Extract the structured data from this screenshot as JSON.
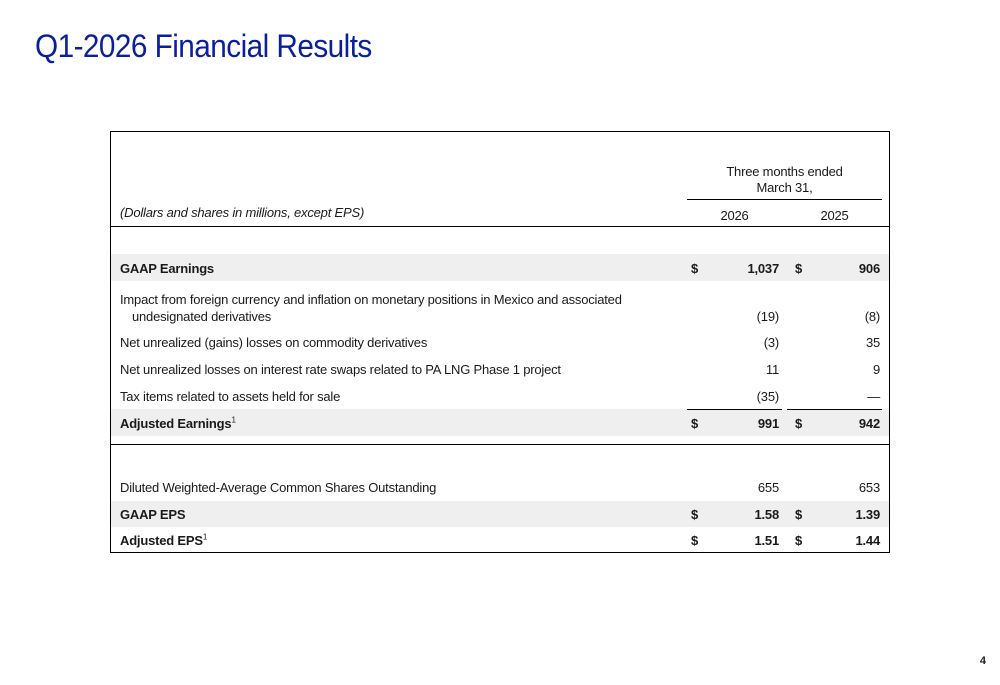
{
  "slide": {
    "title": "Q1-2026 Financial Results",
    "page_number": "4"
  },
  "table": {
    "note": "(Dollars and shares in millions, except EPS)",
    "period_header_line1": "Three months ended",
    "period_header_line2": "March 31,",
    "col_2026": "2026",
    "col_2025": "2025",
    "currency": "$",
    "footnote_marker": "1",
    "rows": [
      {
        "label": "GAAP Earnings",
        "v2026": "1,037",
        "v2025": "906"
      },
      {
        "label_line1": "Impact from foreign currency and inflation on monetary positions in Mexico and associated",
        "label_line2": "undesignated derivatives",
        "v2026": "(19)",
        "v2025": "(8)"
      },
      {
        "label": "Net unrealized (gains) losses on commodity derivatives",
        "v2026": "(3)",
        "v2025": "35"
      },
      {
        "label": "Net unrealized losses on interest rate swaps related to PA LNG Phase 1 project",
        "v2026": "11",
        "v2025": "9"
      },
      {
        "label": "Tax items related to assets held for sale",
        "v2026": "(35)",
        "v2025": "—"
      },
      {
        "label": "Adjusted Earnings",
        "v2026": "991",
        "v2025": "942"
      },
      {
        "label": "Diluted Weighted-Average Common Shares Outstanding",
        "v2026": "655",
        "v2025": "653"
      },
      {
        "label": "GAAP EPS",
        "v2026": "1.58",
        "v2025": "1.39"
      },
      {
        "label": "Adjusted EPS",
        "v2026": "1.51",
        "v2025": "1.44"
      }
    ]
  }
}
